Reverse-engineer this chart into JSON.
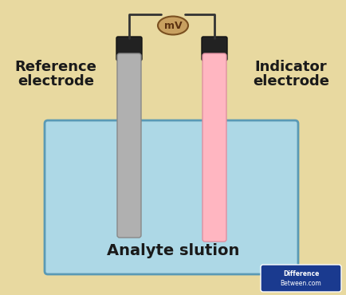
{
  "bg_color": "#e8d9a0",
  "beaker_color": "#add8e6",
  "beaker_border": "#5a9ab5",
  "ref_electrode_color": "#b0b0b0",
  "ref_electrode_border": "#888888",
  "ind_electrode_color": "#ffb6c1",
  "ind_electrode_border": "#e090a0",
  "cap_color": "#222222",
  "wire_color": "#333333",
  "mv_bg": "#c8a060",
  "mv_text": "#5a3010",
  "solution_label": "Analyte slution",
  "ref_label_line1": "Reference",
  "ref_label_line2": "electrode",
  "ind_label_line1": "Indicator",
  "ind_label_line2": "electrode",
  "label_fontsize": 13,
  "solution_fontsize": 14,
  "diff_badge_color": "#1a3a8f",
  "diff_badge_text": "#ffffff"
}
